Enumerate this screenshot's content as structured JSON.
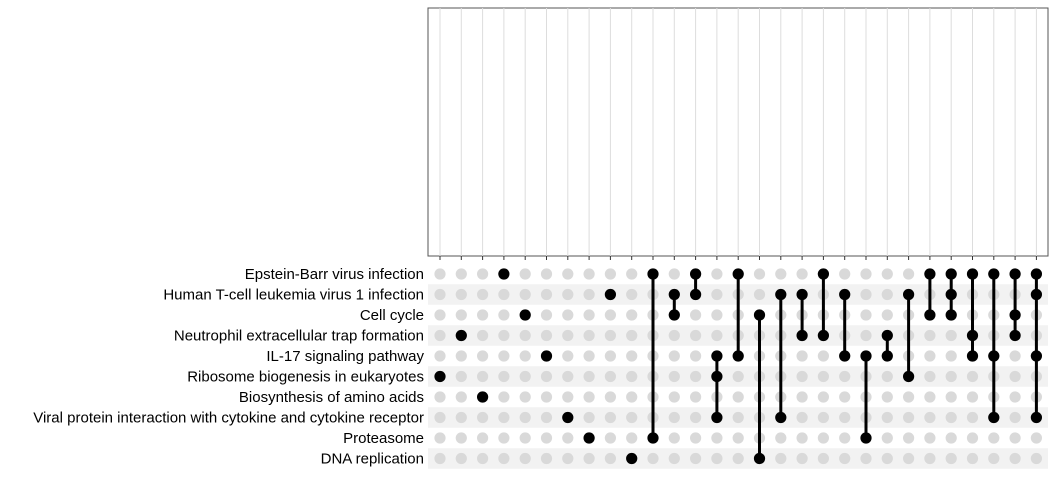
{
  "chart_data": {
    "type": "upset",
    "title": "",
    "xlabel": "",
    "ylabel": "",
    "sets": [
      "Epstein-Barr virus infection",
      "Human T-cell leukemia virus 1 infection",
      "Cell cycle",
      "Neutrophil extracellular trap formation",
      "IL-17 signaling pathway",
      "Ribosome biogenesis in eukaryotes",
      "Biosynthesis of amino acids",
      "Viral protein interaction with cytokine and cytokine receptor",
      "Proteasome",
      "DNA replication"
    ],
    "intersections": [
      [
        5
      ],
      [
        3
      ],
      [
        6
      ],
      [
        0
      ],
      [
        2
      ],
      [
        4
      ],
      [
        7
      ],
      [
        8
      ],
      [
        1
      ],
      [
        9
      ],
      [
        0,
        8
      ],
      [
        1,
        2
      ],
      [
        0,
        1
      ],
      [
        4,
        5,
        7
      ],
      [
        0,
        4
      ],
      [
        2,
        9
      ],
      [
        1,
        7
      ],
      [
        1,
        3
      ],
      [
        0,
        3
      ],
      [
        1,
        4
      ],
      [
        4,
        8
      ],
      [
        3,
        4
      ],
      [
        1,
        5
      ],
      [
        0,
        2
      ],
      [
        0,
        1,
        2
      ],
      [
        0,
        3,
        4
      ],
      [
        0,
        4,
        7
      ],
      [
        0,
        2,
        3
      ],
      [
        0,
        1,
        4,
        7
      ]
    ],
    "intersection_sizes": [],
    "colors": {
      "active_dot": "#000000",
      "inactive_dot": "#d9d9d9",
      "stripe": "#f2f2f2",
      "grid": "#dddddd",
      "frame": "#555555",
      "text": "#000000"
    },
    "grid": true
  }
}
